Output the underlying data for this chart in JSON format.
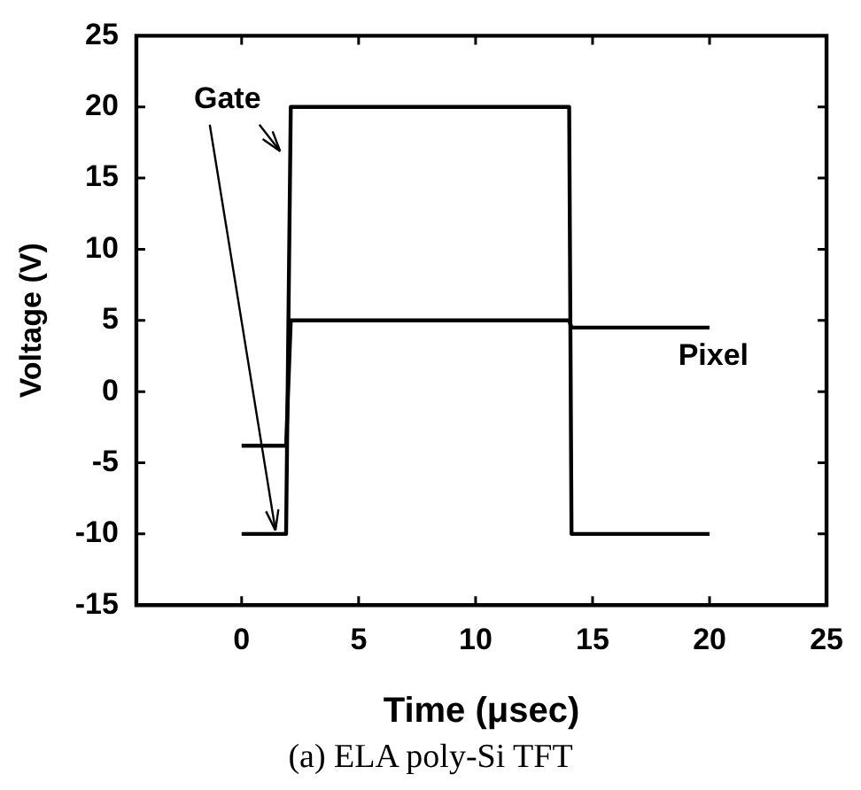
{
  "chart_data": {
    "type": "line",
    "xlabel": "Time (μsec)",
    "ylabel": "Voltage (V)",
    "xlim": [
      -4.5,
      25
    ],
    "xticks": [
      0,
      5,
      10,
      15,
      20,
      25
    ],
    "ylim": [
      -15,
      25
    ],
    "yticks": [
      -15,
      -10,
      -5,
      0,
      5,
      10,
      15,
      20,
      25
    ],
    "grid": false,
    "legend": false,
    "marker": "none",
    "line_style": "solid",
    "series": [
      {
        "name": "Gate",
        "color": "#000000",
        "x": [
          0,
          1.9,
          2.1,
          14,
          14.1,
          20
        ],
        "values": [
          -10,
          -10,
          20,
          20,
          -10,
          -10
        ]
      },
      {
        "name": "Pixel",
        "color": "#000000",
        "x": [
          0,
          1.9,
          2.1,
          14,
          14.1,
          20
        ],
        "values": [
          -3.8,
          -3.8,
          5,
          5,
          4.5,
          4.5
        ]
      }
    ],
    "annotations": [
      "(a) ELA poly-Si TFT"
    ]
  }
}
